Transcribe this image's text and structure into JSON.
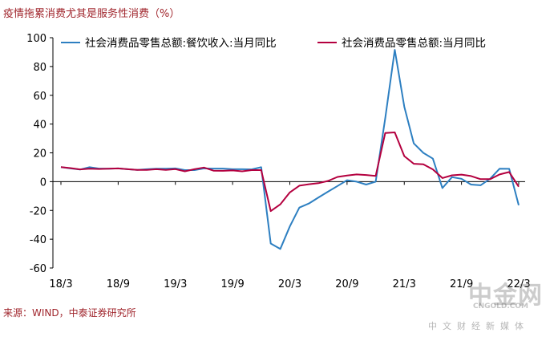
{
  "header": {
    "title": "疫情拖累消费尤其是服务性消费（%）"
  },
  "footer": {
    "source": "来源：WIND，中泰证券研究所"
  },
  "watermark": {
    "cn": "中金网",
    "en": "CNGOLD.COM",
    "sub": "中文财经新媒体"
  },
  "chart_data": {
    "type": "line",
    "title": "疫情拖累消费尤其是服务性消费（%）",
    "xlabel": "",
    "ylabel": "",
    "ylim": [
      -60,
      100
    ],
    "yticks": [
      100,
      80,
      60,
      40,
      20,
      0,
      -20,
      -40,
      -60
    ],
    "xtick_labels": [
      "18/3",
      "18/9",
      "19/3",
      "19/9",
      "20/3",
      "20/9",
      "21/3",
      "21/9",
      "22/3"
    ],
    "xtick_index": [
      0,
      6,
      12,
      18,
      24,
      30,
      36,
      42,
      48
    ],
    "x": [
      "2018-03",
      "2018-04",
      "2018-05",
      "2018-06",
      "2018-07",
      "2018-08",
      "2018-09",
      "2018-10",
      "2018-11",
      "2018-12",
      "2019-01",
      "2019-02",
      "2019-03",
      "2019-04",
      "2019-05",
      "2019-06",
      "2019-07",
      "2019-08",
      "2019-09",
      "2019-10",
      "2019-11",
      "2019-12",
      "2020-01",
      "2020-02",
      "2020-03",
      "2020-04",
      "2020-05",
      "2020-06",
      "2020-07",
      "2020-08",
      "2020-09",
      "2020-10",
      "2020-11",
      "2020-12",
      "2021-01",
      "2021-02",
      "2021-03",
      "2021-04",
      "2021-05",
      "2021-06",
      "2021-07",
      "2021-08",
      "2021-09",
      "2021-10",
      "2021-11",
      "2021-12",
      "2022-01",
      "2022-02",
      "2022-03"
    ],
    "legend": "top",
    "grid": false,
    "series": [
      {
        "name": "社会消费品零售总额:餐饮收入:当月同比",
        "color": "#2d7fc1",
        "values": [
          10.1,
          9.2,
          8.4,
          10.0,
          9.1,
          9.0,
          9.2,
          8.6,
          8.1,
          8.6,
          9.0,
          9.0,
          9.2,
          8.0,
          8.0,
          9.2,
          9.1,
          9.1,
          8.6,
          8.6,
          8.5,
          10.0,
          -43.0,
          -46.8,
          -31.1,
          -18.0,
          -15.2,
          -11.0,
          -7.0,
          -3.0,
          1.0,
          0.0,
          -2.0,
          0.0,
          44.0,
          91.6,
          52.0,
          26.6,
          20.0,
          16.0,
          -4.5,
          3.1,
          2.0,
          -2.0,
          -2.5,
          2.0,
          9.0,
          8.9,
          -16.4
        ]
      },
      {
        "name": "社会消费品零售总额:当月同比",
        "color": "#b4003f",
        "values": [
          10.1,
          9.4,
          8.5,
          9.0,
          8.8,
          9.0,
          9.2,
          8.6,
          8.1,
          8.2,
          8.6,
          8.2,
          8.7,
          7.2,
          8.6,
          9.8,
          7.6,
          7.5,
          7.8,
          7.2,
          8.0,
          8.0,
          -20.5,
          -15.8,
          -7.5,
          -2.8,
          -1.8,
          -1.1,
          0.5,
          3.3,
          4.3,
          5.0,
          4.6,
          4.0,
          33.8,
          34.2,
          17.7,
          12.4,
          12.1,
          8.5,
          2.5,
          4.4,
          4.9,
          3.9,
          1.7,
          1.7,
          5.0,
          6.7,
          -3.5
        ]
      }
    ]
  }
}
